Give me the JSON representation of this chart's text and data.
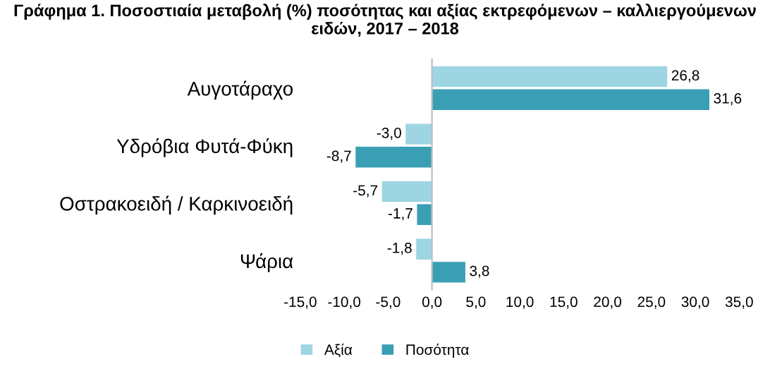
{
  "chart_data": {
    "type": "bar",
    "orientation": "horizontal",
    "title": "Γράφημα 1. Ποσοστιαία μεταβολή (%) ποσότητας και αξίας εκτρεφόμενων – καλλιεργούμενων ειδών, 2017 – 2018",
    "categories": [
      "Αυγοτάραχο",
      "Υδρόβια Φυτά-Φύκη",
      "Οστρακοειδή / Καρκινοειδή",
      "Ψάρια"
    ],
    "series": [
      {
        "name": "Αξία",
        "color": "#9dd5e3",
        "values": [
          26.8,
          -3.0,
          -5.7,
          -1.8
        ],
        "value_labels": [
          "26,8",
          "-3,0",
          "-5,7",
          "-1,8"
        ]
      },
      {
        "name": "Ποσότητα",
        "color": "#3a9fb5",
        "values": [
          31.6,
          -8.7,
          -1.7,
          3.8
        ],
        "value_labels": [
          "31,6",
          "-8,7",
          "-1,7",
          "3,8"
        ]
      }
    ],
    "xlim": [
      -15,
      35
    ],
    "xticks": [
      {
        "value": -15,
        "label": "-15,0"
      },
      {
        "value": -10,
        "label": "-10,0"
      },
      {
        "value": -5,
        "label": "-5,0"
      },
      {
        "value": 0,
        "label": "0,0"
      },
      {
        "value": 5,
        "label": "5,0"
      },
      {
        "value": 10,
        "label": "10,0"
      },
      {
        "value": 15,
        "label": "15,0"
      },
      {
        "value": 20,
        "label": "20,0"
      },
      {
        "value": 25,
        "label": "25,0"
      },
      {
        "value": 30,
        "label": "30,0"
      },
      {
        "value": 35,
        "label": "35,0"
      }
    ],
    "legend": "bottom"
  }
}
